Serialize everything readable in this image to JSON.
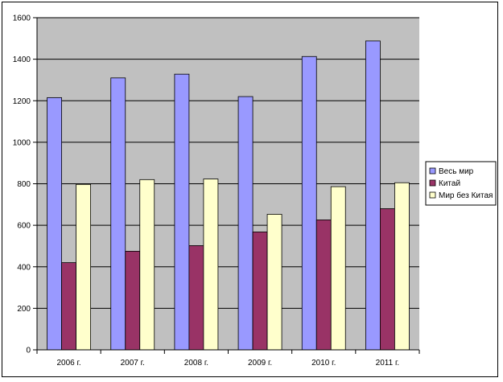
{
  "chart_data": {
    "type": "bar",
    "categories": [
      "2006 г.",
      "2007 г.",
      "2008 г.",
      "2009 г.",
      "2010 г.",
      "2011 г."
    ],
    "series": [
      {
        "name": "Весь мир",
        "values": [
          1215,
          1310,
          1328,
          1220,
          1413,
          1488
        ],
        "color": "#9999ff"
      },
      {
        "name": "Китай",
        "values": [
          420,
          475,
          502,
          568,
          626,
          680
        ],
        "color": "#993366"
      },
      {
        "name": "Мир без Китая",
        "values": [
          797,
          820,
          823,
          653,
          786,
          805
        ],
        "color": "#ffffcc"
      }
    ],
    "ylim": [
      0,
      1600
    ],
    "yticks": [
      "0",
      "200",
      "400",
      "600",
      "800",
      "1000",
      "1200",
      "1400",
      "1600"
    ],
    "grid": true,
    "plot_background": "#c0c0c0",
    "legend_position": "right"
  }
}
